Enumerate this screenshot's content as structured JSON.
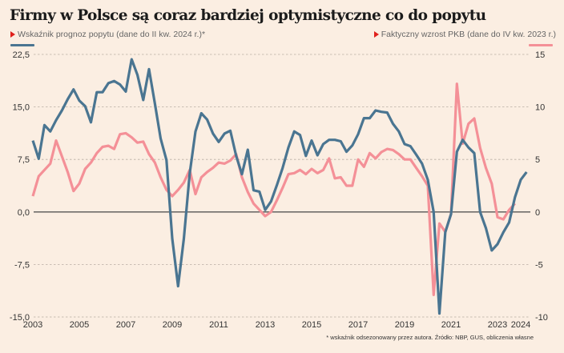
{
  "chart_data": {
    "type": "line",
    "title": "Firmy w Polsce są coraz bardziej optymistyczne co do popytu",
    "xlabel": "",
    "ylabel": "",
    "x_start": "2003 Q1",
    "x_step": "quarter",
    "x_ticks": [
      "2003",
      "2005",
      "2007",
      "2009",
      "2011",
      "2013",
      "2015",
      "2017",
      "2019",
      "2021",
      "2023",
      "2024"
    ],
    "x_tick_years": [
      2003,
      2005,
      2007,
      2009,
      2011,
      2013,
      2015,
      2017,
      2019,
      2021,
      2023,
      2024
    ],
    "y_left": {
      "range": [
        -15,
        22.5
      ],
      "ticks": [
        22.5,
        15,
        7.5,
        0,
        -7.5,
        -15
      ],
      "tick_labels": [
        "22,5",
        "15,0",
        "7,5",
        "0,0",
        "-7,5",
        "-15,0"
      ]
    },
    "y_right": {
      "range": [
        -10,
        15
      ],
      "ticks": [
        15,
        10,
        5,
        0,
        -5,
        -10
      ],
      "tick_labels": [
        "15",
        "10",
        "5",
        "0",
        "-5",
        "-10"
      ]
    },
    "grid": true,
    "series": [
      {
        "name": "Wskaźnik prognoz popytu (dane do II kw. 2024 r.)*",
        "axis": "left",
        "color": "#4a7591",
        "values": [
          10.2,
          7.6,
          12.4,
          11.5,
          13.1,
          14.5,
          16.1,
          17.5,
          15.9,
          15.1,
          12.8,
          17.1,
          17.1,
          18.4,
          18.7,
          18.2,
          17.2,
          21.8,
          19.6,
          16.0,
          20.4,
          15.5,
          10.5,
          7.4,
          -3.8,
          -10.6,
          -3.8,
          5.5,
          11.5,
          14.1,
          13.2,
          11.2,
          10.0,
          11.2,
          11.6,
          8.0,
          5.4,
          8.9,
          3.1,
          2.9,
          0.3,
          1.5,
          3.8,
          6.3,
          9.2,
          11.5,
          11.0,
          8.0,
          10.2,
          8.1,
          9.7,
          10.3,
          10.3,
          10.1,
          8.6,
          9.5,
          11.1,
          13.4,
          13.4,
          14.5,
          14.3,
          14.2,
          12.6,
          11.5,
          9.7,
          9.4,
          8.2,
          6.9,
          4.6,
          0.0,
          -14.5,
          -2.9,
          -0.3,
          8.6,
          10.3,
          9.2,
          8.4,
          0.0,
          -2.3,
          -5.5,
          -4.6,
          -2.9,
          -1.5,
          2.1,
          4.6,
          5.7
        ]
      },
      {
        "name": "Faktyczny wzrost PKB (dane do IV kw. 2023 r.)",
        "axis": "right",
        "color": "#f49097",
        "values": [
          1.5,
          3.4,
          4.0,
          4.6,
          6.8,
          5.3,
          3.8,
          2.0,
          2.7,
          4.1,
          4.7,
          5.6,
          6.2,
          6.3,
          6.0,
          7.4,
          7.5,
          7.1,
          6.6,
          6.7,
          5.5,
          4.7,
          3.3,
          2.1,
          1.5,
          2.1,
          2.8,
          4.0,
          1.7,
          3.3,
          3.8,
          4.2,
          4.7,
          4.6,
          4.9,
          5.5,
          3.3,
          1.9,
          0.8,
          0.2,
          -0.4,
          0.0,
          1.1,
          2.3,
          3.6,
          3.7,
          4.0,
          3.6,
          4.1,
          3.7,
          4.0,
          5.1,
          3.2,
          3.3,
          2.5,
          2.5,
          5.0,
          4.3,
          5.6,
          5.1,
          5.7,
          6.0,
          5.9,
          5.5,
          5.0,
          5.0,
          4.2,
          3.4,
          2.5,
          -7.9,
          -1.1,
          -1.9,
          -0.2,
          12.2,
          6.5,
          8.4,
          8.9,
          6.1,
          4.2,
          2.7,
          -0.5,
          -0.7,
          0.2,
          0.8
        ]
      }
    ],
    "legend": {
      "placement": "top",
      "left_label": "Wskaźnik prognoz popytu (dane do II kw. 2024 r.)*",
      "right_label": "Faktyczny wzrost PKB (dane do IV kw. 2023 r.)"
    },
    "footnote": "* wskaźnik odsezonowany przez autora. Źródło: NBP, GUS, obliczenia własne"
  },
  "colors": {
    "background": "#fbeee2",
    "blue": "#4a7591",
    "pink": "#f49097",
    "marker": "#e0201c"
  }
}
